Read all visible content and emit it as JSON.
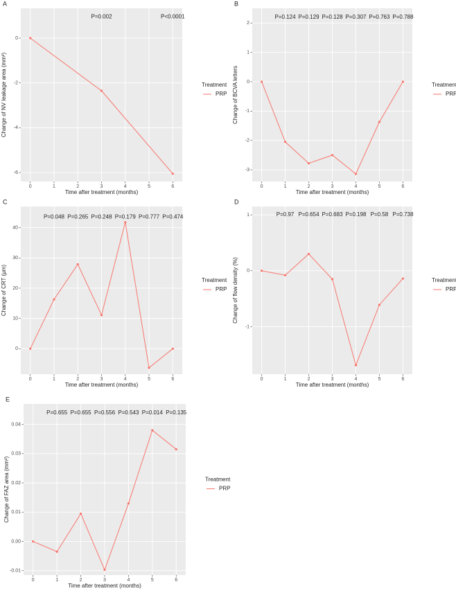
{
  "chart_data": [
    {
      "type": "line",
      "panel_label": "A",
      "y_label": "Change of NV leakage area (mm²)",
      "x_label": "Time after treatment (months)",
      "legend_title": "Treatment",
      "x": [
        0,
        3,
        6
      ],
      "series": [
        {
          "name": "PRP",
          "color": "#F8766D",
          "values": [
            0,
            -2.35,
            -6.05
          ]
        }
      ],
      "xlim": [
        -0.4,
        6.4
      ],
      "xticks": [
        0,
        1,
        2,
        3,
        4,
        5,
        6
      ],
      "ylim": [
        -6.4,
        1.33
      ],
      "yticks": [
        -6,
        -4,
        -2,
        0
      ],
      "annotations": [
        {
          "x": 3,
          "text": "P=0.002"
        },
        {
          "x": 6,
          "text": "P<0.0001"
        }
      ],
      "annotation_y": 0.95
    },
    {
      "type": "line",
      "panel_label": "B",
      "y_label": "Change of BCVA letters",
      "x_label": "Time after treatment (months)",
      "legend_title": "Treatment",
      "x": [
        0,
        1,
        2,
        3,
        4,
        5,
        6
      ],
      "series": [
        {
          "name": "PRP",
          "color": "#F8766D",
          "values": [
            0,
            -2.05,
            -2.78,
            -2.5,
            -3.14,
            -1.37,
            0
          ]
        }
      ],
      "xlim": [
        -0.4,
        6.4
      ],
      "xticks": [
        0,
        1,
        2,
        3,
        4,
        5,
        6
      ],
      "ylim": [
        -3.4,
        2.5
      ],
      "yticks": [
        -3,
        -2,
        -1,
        0,
        1,
        2
      ],
      "annotations": [
        {
          "x": 1,
          "text": "P=0.124"
        },
        {
          "x": 2,
          "text": "P=0.129"
        },
        {
          "x": 3,
          "text": "P=0.128"
        },
        {
          "x": 4,
          "text": "P=0.307"
        },
        {
          "x": 5,
          "text": "P=0.763"
        },
        {
          "x": 6,
          "text": "P=0.788"
        }
      ],
      "annotation_y": 2.2
    },
    {
      "type": "line",
      "panel_label": "C",
      "y_label": "Change of CRT (μm)",
      "x_label": "Time after treatment (months)",
      "legend_title": "Treatment",
      "x": [
        0,
        1,
        2,
        3,
        4,
        5,
        6
      ],
      "series": [
        {
          "name": "PRP",
          "color": "#F8766D",
          "values": [
            0,
            16.3,
            27.9,
            11.1,
            41.8,
            -6.3,
            0
          ]
        }
      ],
      "xlim": [
        -0.4,
        6.4
      ],
      "xticks": [
        0,
        1,
        2,
        3,
        4,
        5,
        6
      ],
      "ylim": [
        -8.4,
        47
      ],
      "yticks": [
        0,
        10,
        20,
        30,
        40
      ],
      "annotations": [
        {
          "x": 1,
          "text": "P=0.048"
        },
        {
          "x": 2,
          "text": "P=0.265"
        },
        {
          "x": 3,
          "text": "P=0.248"
        },
        {
          "x": 4,
          "text": "P=0.179"
        },
        {
          "x": 5,
          "text": "P=0.777"
        },
        {
          "x": 6,
          "text": "P=0.474"
        }
      ],
      "annotation_y": 43.5
    },
    {
      "type": "line",
      "panel_label": "D",
      "y_label": "Change of flow density (%)",
      "x_label": "Time after treatment (months)",
      "legend_title": "Treatment",
      "x": [
        0,
        1,
        2,
        3,
        4,
        5,
        6
      ],
      "series": [
        {
          "name": "PRP",
          "color": "#F8766D",
          "values": [
            0,
            -0.08,
            0.3,
            -0.15,
            -1.69,
            -0.61,
            -0.14
          ]
        }
      ],
      "xlim": [
        -0.4,
        6.4
      ],
      "xticks": [
        0,
        1,
        2,
        3,
        4,
        5,
        6
      ],
      "ylim": [
        -1.85,
        1.15
      ],
      "yticks": [
        -1,
        0,
        1
      ],
      "annotations": [
        {
          "x": 1,
          "text": "P=0.97"
        },
        {
          "x": 2,
          "text": "P=0.654"
        },
        {
          "x": 3,
          "text": "P=0.683"
        },
        {
          "x": 4,
          "text": "P=0.198"
        },
        {
          "x": 5,
          "text": "P=0.58"
        },
        {
          "x": 6,
          "text": "P=0.738"
        }
      ],
      "annotation_y": 1.0
    },
    {
      "type": "line",
      "panel_label": "E",
      "y_label": "Change of FAZ area (mm²)",
      "x_label": "Time after treatment (months)",
      "legend_title": "Treatment",
      "x": [
        0,
        1,
        2,
        3,
        4,
        5,
        6
      ],
      "series": [
        {
          "name": "PRP",
          "color": "#F8766D",
          "values": [
            0,
            -0.0035,
            0.0095,
            -0.0097,
            0.013,
            0.038,
            0.0315
          ]
        }
      ],
      "xlim": [
        -0.4,
        6.4
      ],
      "xticks": [
        0,
        1,
        2,
        3,
        4,
        5,
        6
      ],
      "ylim": [
        -0.0115,
        0.047
      ],
      "yticks": [
        -0.01,
        {
          "value": 0,
          "label": "0.00"
        },
        0.01,
        0.02,
        0.03,
        0.04
      ],
      "annotations": [
        {
          "x": 1,
          "text": "P=0.655"
        },
        {
          "x": 2,
          "text": "P=0.655"
        },
        {
          "x": 3,
          "text": "P=0.556"
        },
        {
          "x": 4,
          "text": "P=0.543"
        },
        {
          "x": 5,
          "text": "P=0.014"
        },
        {
          "x": 6,
          "text": "P=0.135"
        }
      ],
      "annotation_y": 0.044
    }
  ]
}
